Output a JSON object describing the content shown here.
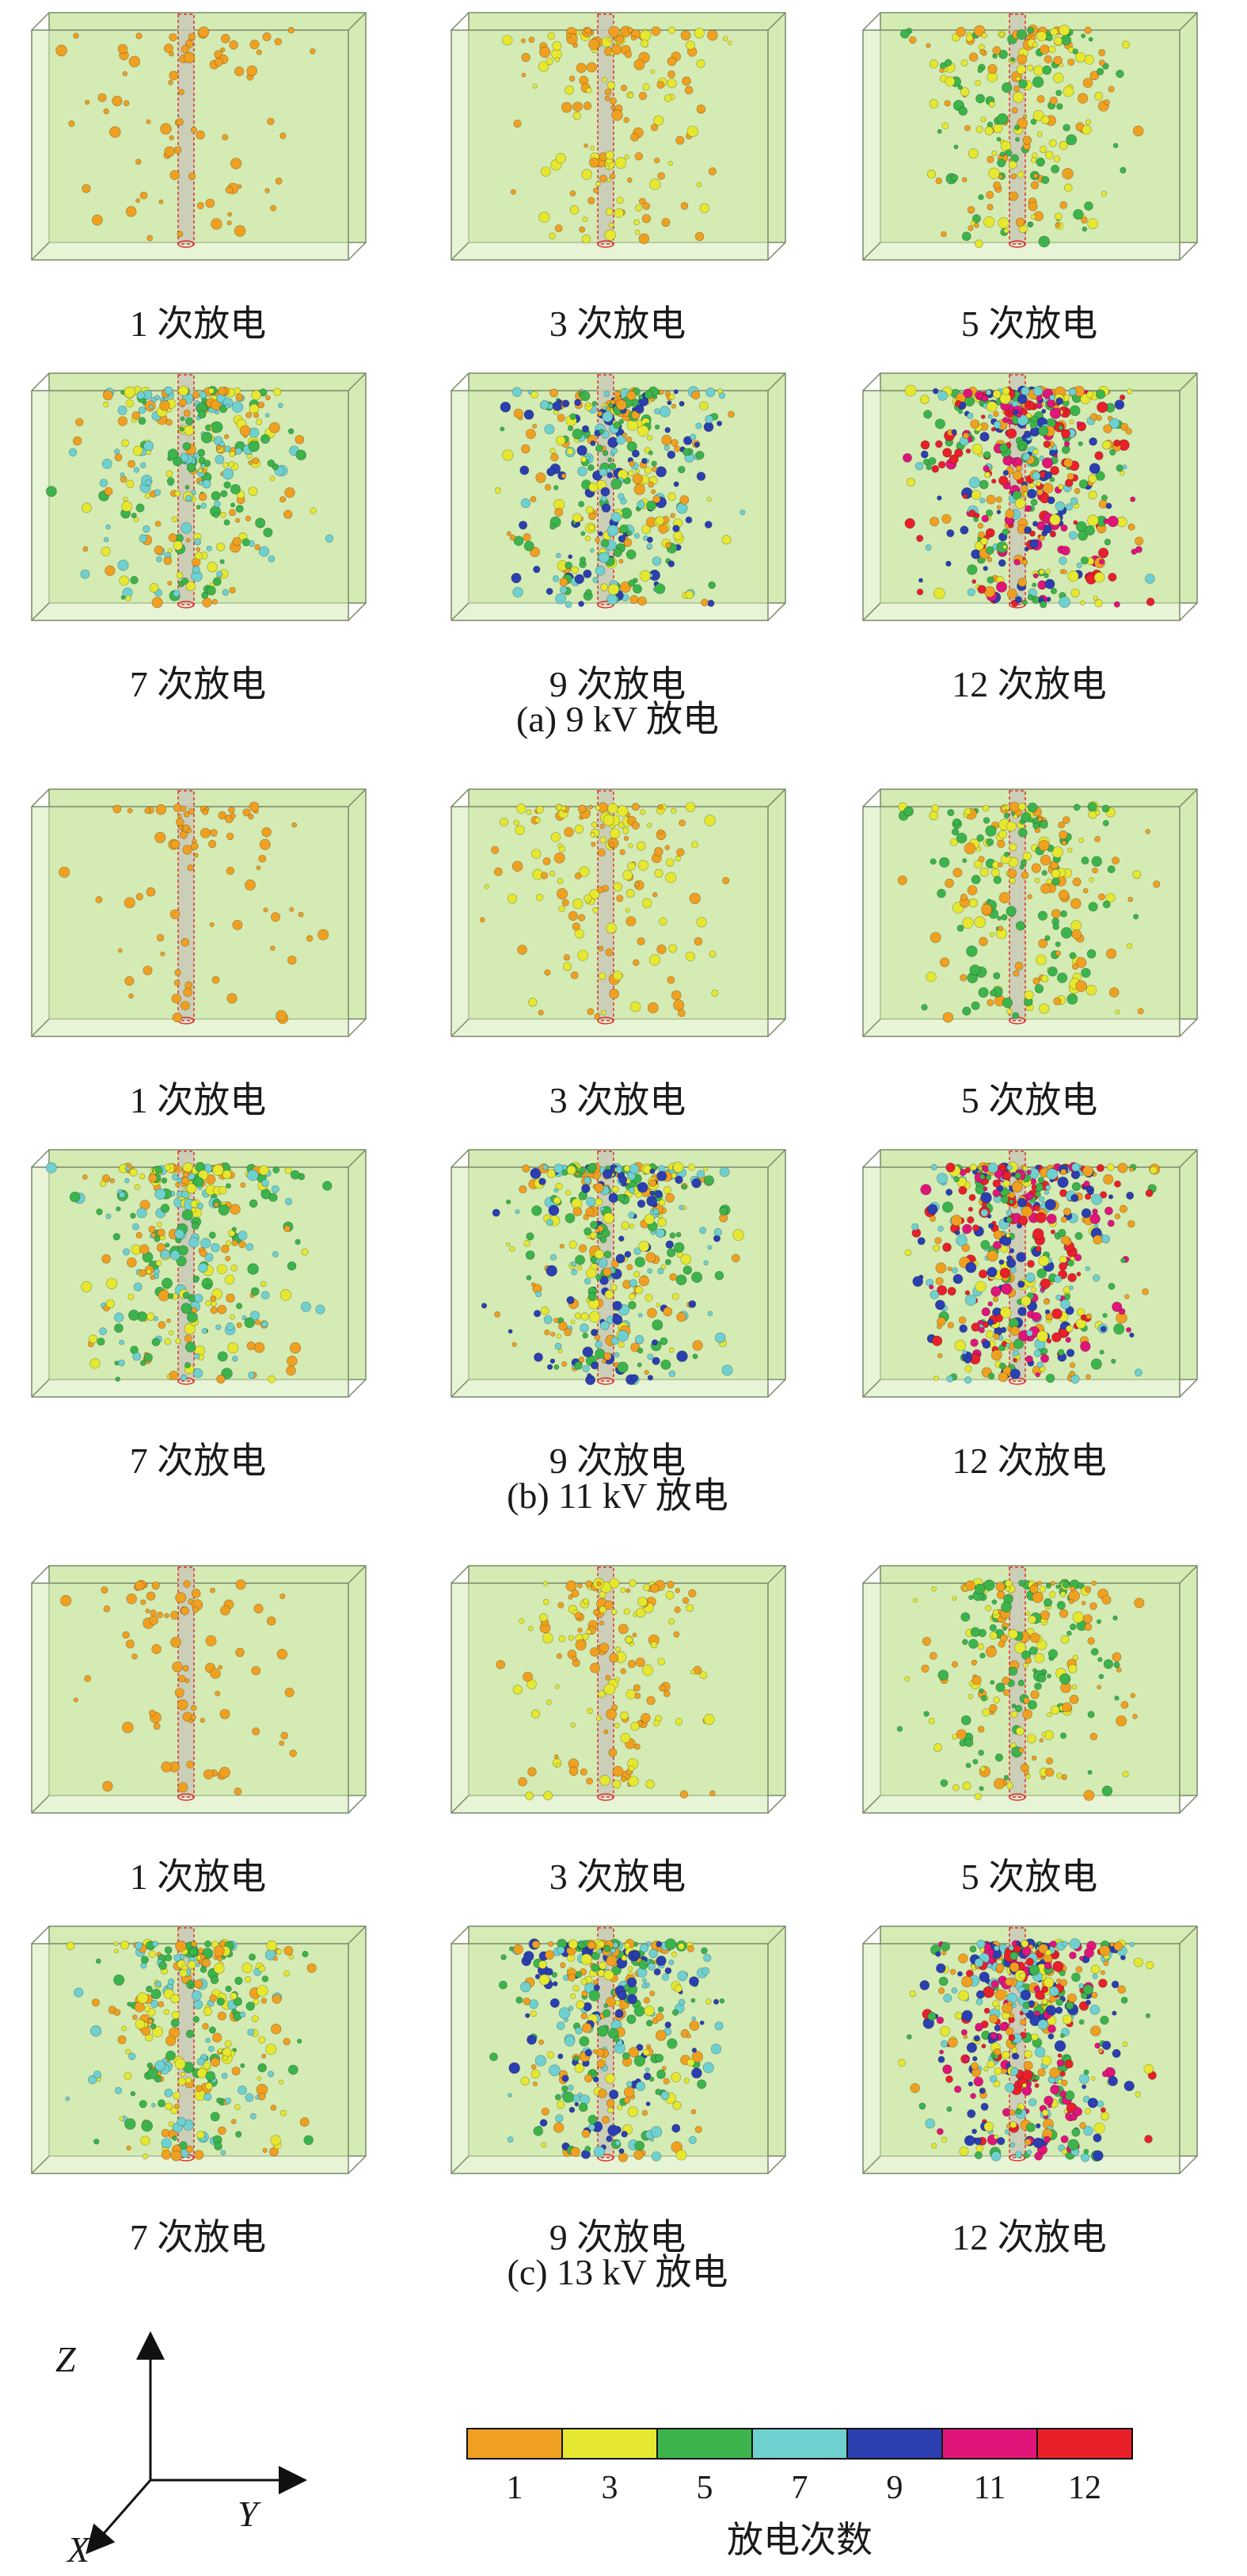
{
  "groups": [
    {
      "caption": "(a) 9 kV 放电",
      "panels": [
        {
          "label": "1 次放电",
          "n": 1
        },
        {
          "label": "3 次放电",
          "n": 3
        },
        {
          "label": "5 次放电",
          "n": 5
        },
        {
          "label": "7 次放电",
          "n": 7
        },
        {
          "label": "9 次放电",
          "n": 9
        },
        {
          "label": "12 次放电",
          "n": 12
        }
      ]
    },
    {
      "caption": "(b) 11 kV 放电",
      "panels": [
        {
          "label": "1 次放电",
          "n": 1
        },
        {
          "label": "3 次放电",
          "n": 3
        },
        {
          "label": "5 次放电",
          "n": 5
        },
        {
          "label": "7 次放电",
          "n": 7
        },
        {
          "label": "9 次放电",
          "n": 9
        },
        {
          "label": "12 次放电",
          "n": 12
        }
      ]
    },
    {
      "caption": "(c) 13 kV 放电",
      "panels": [
        {
          "label": "1 次放电",
          "n": 1
        },
        {
          "label": "3 次放电",
          "n": 3
        },
        {
          "label": "5 次放电",
          "n": 5
        },
        {
          "label": "7 次放电",
          "n": 7
        },
        {
          "label": "9 次放电",
          "n": 9
        },
        {
          "label": "12 次放电",
          "n": 12
        }
      ]
    }
  ],
  "axes": {
    "z": "Z",
    "y": "Y",
    "x": "X"
  },
  "colorbar": {
    "title": "放电次数",
    "ticks": [
      "1",
      "3",
      "5",
      "7",
      "9",
      "11",
      "12"
    ],
    "colors": [
      "#f0a020",
      "#e6e830",
      "#3cb44b",
      "#6fd0d0",
      "#2b3fb0",
      "#e0157a",
      "#e8202a"
    ]
  },
  "theme": {
    "box_fill": "#d4ebb4",
    "box_edge": "#7a8a6a",
    "cylinder": "#c8c8b8",
    "cylinder_edge": "#e03030"
  }
}
